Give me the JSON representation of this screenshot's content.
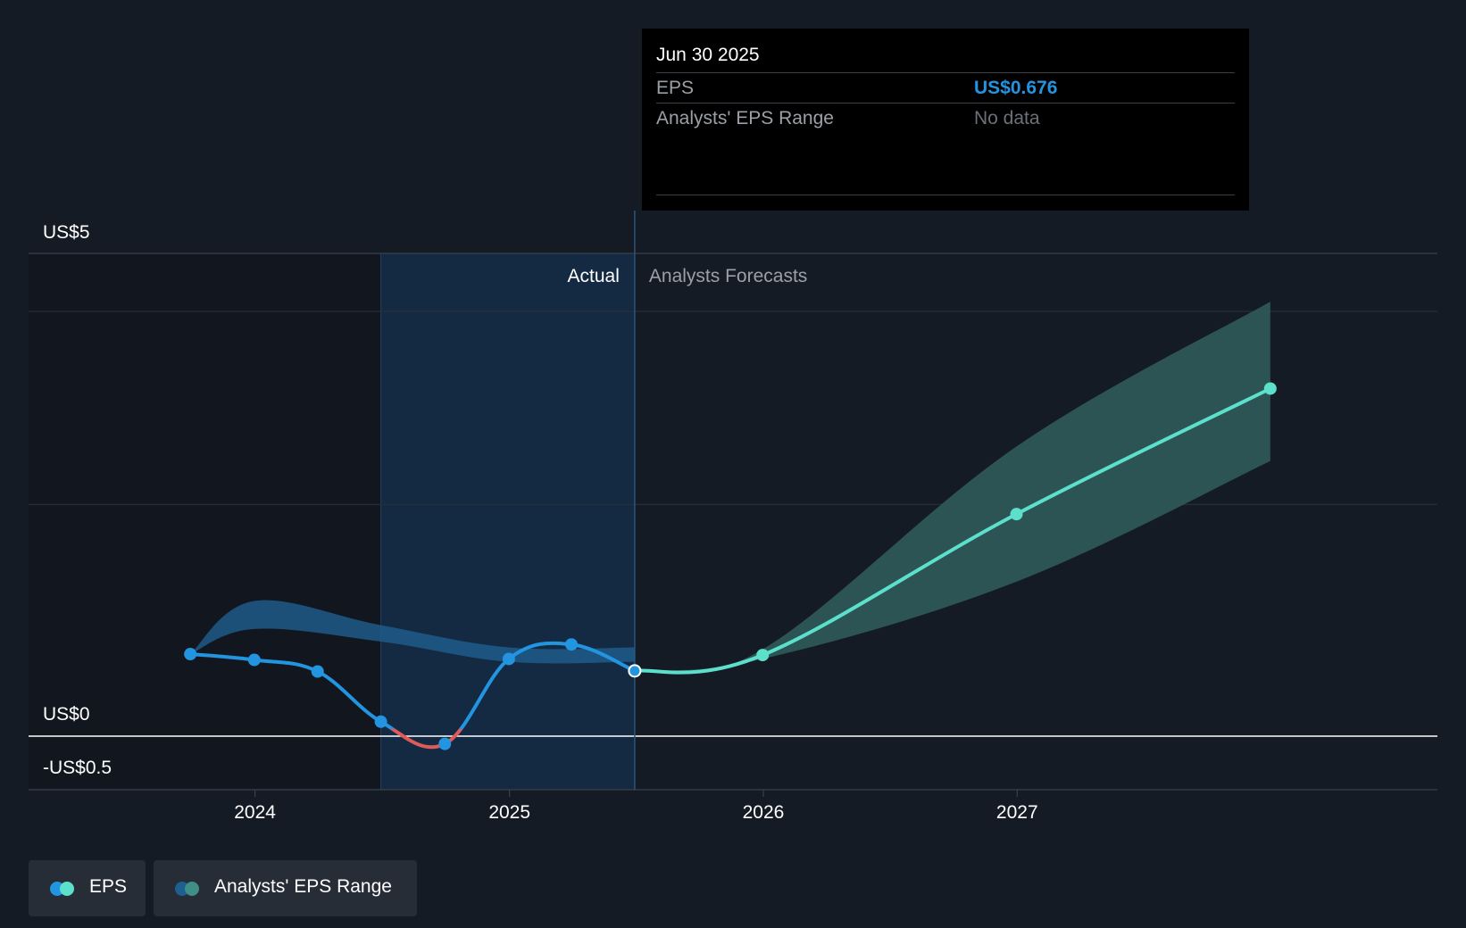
{
  "tooltip": {
    "date": "Jun 30 2025",
    "eps_label": "EPS",
    "eps_value": "US$0.676",
    "range_label": "Analysts' EPS Range",
    "range_value": "No data"
  },
  "legend": {
    "eps_label": "EPS",
    "range_label": "Analysts' EPS Range"
  },
  "colors": {
    "background": "#151b24",
    "eps_actual": "#2394e0",
    "eps_negative": "#e05a5a",
    "eps_forecast": "#5ce0cb",
    "range_actual": "#1f5f8f",
    "range_forecast": "#2e5757",
    "actual_region": "#132a42",
    "grid": "#2a3038",
    "zero_line": "#ffffff"
  },
  "chart_data": {
    "type": "line",
    "y_tick_labels": [
      "US$5",
      "US$0",
      "-US$0.5"
    ],
    "x_tick_labels": [
      "2024",
      "2025",
      "2026",
      "2027"
    ],
    "ylim": [
      -0.5,
      5
    ],
    "xlim": [
      "2023-07-01",
      "2027-12-31"
    ],
    "grid": true,
    "legend_position": "bottom-left",
    "actual_label": "Actual",
    "forecast_label": "Analysts Forecasts",
    "actual_end": "2025-06-30",
    "series": [
      {
        "name": "EPS",
        "segment": "actual",
        "x": [
          "2023-09-30",
          "2023-12-31",
          "2024-03-31",
          "2024-06-30",
          "2024-09-30",
          "2024-12-31",
          "2025-03-31",
          "2025-06-30"
        ],
        "y": [
          0.85,
          0.79,
          0.67,
          0.15,
          -0.08,
          0.8,
          0.95,
          0.676
        ]
      },
      {
        "name": "EPS",
        "segment": "forecast",
        "x": [
          "2025-06-30",
          "2025-12-31",
          "2026-12-31",
          "2027-12-31"
        ],
        "y": [
          0.676,
          0.84,
          2.3,
          3.6
        ]
      },
      {
        "name": "Analysts' EPS Range",
        "segment": "actual",
        "x": [
          "2023-09-30",
          "2023-12-31",
          "2024-06-30",
          "2024-12-31",
          "2025-06-30"
        ],
        "low": [
          0.85,
          1.11,
          0.98,
          0.77,
          0.77
        ],
        "high": [
          0.85,
          1.4,
          1.15,
          0.92,
          0.92
        ]
      },
      {
        "name": "Analysts' EPS Range",
        "segment": "forecast",
        "x": [
          "2025-06-30",
          "2025-12-31",
          "2026-12-31",
          "2027-12-31"
        ],
        "low": [
          0.676,
          0.8,
          1.6,
          2.85
        ],
        "high": [
          0.676,
          0.9,
          3.0,
          4.5
        ]
      }
    ]
  }
}
